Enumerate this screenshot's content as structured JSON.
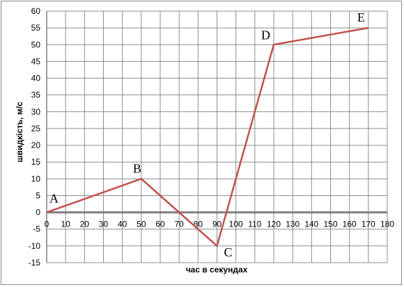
{
  "chart_data": {
    "type": "line",
    "title": "",
    "xlabel": "час в секундах",
    "ylabel": "швидкість, м/с",
    "xlim": [
      0,
      180
    ],
    "ylim": [
      -15,
      60
    ],
    "x_ticks": [
      0,
      10,
      20,
      30,
      40,
      50,
      60,
      70,
      80,
      90,
      100,
      110,
      120,
      130,
      140,
      150,
      160,
      170,
      180
    ],
    "y_ticks": [
      -15,
      -10,
      -5,
      0,
      5,
      10,
      15,
      20,
      25,
      30,
      35,
      40,
      45,
      50,
      55,
      60
    ],
    "grid": true,
    "legend": "none",
    "series": [
      {
        "color": "#c0504d",
        "points": [
          {
            "x": 0,
            "y": 0,
            "label": "A"
          },
          {
            "x": 50,
            "y": 10,
            "label": "B"
          },
          {
            "x": 90,
            "y": -10,
            "label": "C"
          },
          {
            "x": 120,
            "y": 50,
            "label": "D"
          },
          {
            "x": 170,
            "y": 55,
            "label": "E"
          }
        ]
      }
    ]
  }
}
